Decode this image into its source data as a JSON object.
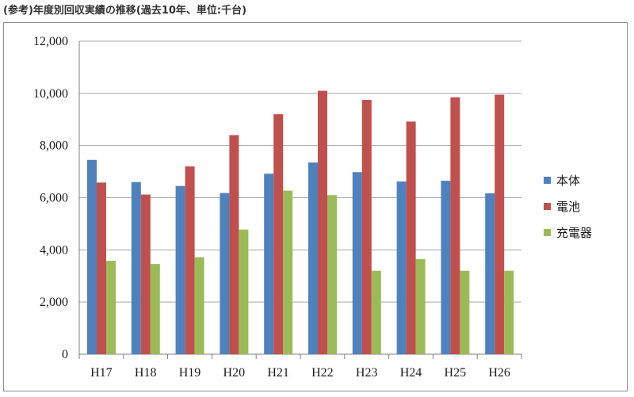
{
  "caption": "(参考)年度別回収実績の推移(過去10年、単位:千台)",
  "colors": {
    "本体": "#4f81bd",
    "電池": "#c0504d",
    "充電器": "#9bbb59",
    "grid": "#a6a6a6",
    "axis": "#7f7f7f"
  },
  "chart_data": {
    "type": "bar",
    "title": "(参考)年度別回収実績の推移(過去10年、単位:千台)",
    "xlabel": "",
    "ylabel": "",
    "ylim": [
      0,
      12000
    ],
    "yticks": [
      0,
      2000,
      4000,
      6000,
      8000,
      10000,
      12000
    ],
    "ytick_labels": [
      "0",
      "2,000",
      "4,000",
      "6,000",
      "8,000",
      "10,000",
      "12,000"
    ],
    "grid": true,
    "legend_position": "right",
    "categories": [
      "H17",
      "H18",
      "H19",
      "H20",
      "H21",
      "H22",
      "H23",
      "H24",
      "H25",
      "H26"
    ],
    "series": [
      {
        "name": "本体",
        "values": [
          7450,
          6600,
          6450,
          6180,
          6920,
          7350,
          6980,
          6620,
          6650,
          6170
        ]
      },
      {
        "name": "電池",
        "values": [
          6580,
          6120,
          7200,
          8400,
          9200,
          10100,
          9750,
          8920,
          9850,
          9950
        ]
      },
      {
        "name": "充電器",
        "values": [
          3580,
          3460,
          3720,
          4780,
          6270,
          6100,
          3200,
          3650,
          3200,
          3200
        ]
      }
    ]
  }
}
